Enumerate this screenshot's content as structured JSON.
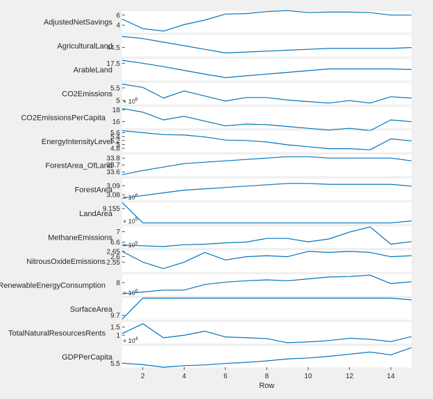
{
  "chart_data": {
    "type": "line",
    "plot_type": "stacked-plot",
    "xlabel": "Row",
    "xlim": [
      1,
      15
    ],
    "xticks": [
      2,
      4,
      6,
      8,
      10,
      12,
      14
    ],
    "x": [
      1,
      2,
      3,
      4,
      5,
      6,
      7,
      8,
      9,
      10,
      11,
      12,
      13,
      14,
      15
    ],
    "line_color": "#0072bd",
    "background": "#ffffff",
    "series": [
      {
        "name": "AdjustedNetSavings",
        "ylim": [
          2.5,
          6.8
        ],
        "yticks": [
          4,
          6
        ],
        "exponent": "",
        "values": [
          5.2,
          3.3,
          2.8,
          4.1,
          5.0,
          6.2,
          6.3,
          6.7,
          6.9,
          6.5,
          6.6,
          6.6,
          6.5,
          6.0,
          6.0
        ]
      },
      {
        "name": "AgriculturalLand",
        "ylim": [
          44.3,
          44.78
        ],
        "yticks": [
          44.5
        ],
        "exponent": "",
        "values": [
          44.75,
          44.7,
          44.62,
          44.54,
          44.46,
          44.38,
          44.4,
          44.42,
          44.44,
          44.46,
          44.48,
          44.48,
          44.48,
          44.48,
          44.5
        ]
      },
      {
        "name": "ArableLand",
        "ylim": [
          16.9,
          17.65
        ],
        "yticks": [
          17.5
        ],
        "exponent": "",
        "values": [
          17.6,
          17.5,
          17.38,
          17.25,
          17.12,
          17.0,
          17.06,
          17.12,
          17.18,
          17.24,
          17.3,
          17.3,
          17.3,
          17.3,
          17.28
        ]
      },
      {
        "name": "CO2Emissions",
        "ylim": [
          4.85,
          5.7
        ],
        "yticks": [
          5,
          5.5
        ],
        "exponent": "6",
        "values": [
          5.65,
          5.52,
          5.1,
          5.38,
          5.18,
          4.98,
          5.12,
          5.12,
          5.02,
          4.96,
          4.9,
          5.0,
          4.9,
          5.15,
          5.1
        ]
      },
      {
        "name": "CO2EmissionsPerCapita",
        "ylim": [
          14.9,
          18.5
        ],
        "yticks": [
          16,
          18
        ],
        "exponent": "",
        "values": [
          18.2,
          17.6,
          16.3,
          16.9,
          16.1,
          15.3,
          15.6,
          15.5,
          15.2,
          14.9,
          14.6,
          14.9,
          14.5,
          16.3,
          16.0
        ]
      },
      {
        "name": "EnergyIntensityLevel",
        "ylim": [
          4.6,
          5.7
        ],
        "yticks": [
          4.8,
          5,
          5.2,
          5.4,
          5.6
        ],
        "exponent": "",
        "values": [
          5.7,
          5.6,
          5.5,
          5.48,
          5.38,
          5.22,
          5.2,
          5.12,
          4.98,
          4.88,
          4.78,
          4.78,
          4.72,
          5.28,
          5.18
        ]
      },
      {
        "name": "ForestArea_OfLand",
        "ylim": [
          33.54,
          33.85
        ],
        "yticks": [
          33.6,
          33.7,
          33.8
        ],
        "exponent": "",
        "values": [
          33.56,
          33.62,
          33.67,
          33.72,
          33.74,
          33.76,
          33.78,
          33.8,
          33.82,
          33.82,
          33.8,
          33.8,
          33.8,
          33.8,
          33.76
        ]
      },
      {
        "name": "ForestArea",
        "ylim": [
          3.074,
          3.098
        ],
        "yticks": [
          3.08,
          3.09
        ],
        "exponent": "6",
        "values": [
          3.076,
          3.079,
          3.082,
          3.085,
          3.0865,
          3.088,
          3.0895,
          3.091,
          3.0925,
          3.0925,
          3.0915,
          3.0915,
          3.0915,
          3.0915,
          3.0895
        ]
      },
      {
        "name": "LandArea",
        "ylim": [
          9.1535,
          9.1556
        ],
        "yticks": [
          9.155
        ],
        "exponent": "5",
        "values": [
          9.1556,
          9.1536,
          9.1536,
          9.1536,
          9.1536,
          9.1536,
          9.1536,
          9.1536,
          9.1536,
          9.1536,
          9.1536,
          9.1536,
          9.1536,
          9.1536,
          9.1538
        ]
      },
      {
        "name": "MethaneEmissions",
        "ylim": [
          6.38,
          7.2
        ],
        "yticks": [
          6.6,
          7
        ],
        "exponent": "5",
        "values": [
          6.48,
          6.46,
          6.43,
          6.5,
          6.52,
          6.57,
          6.6,
          6.74,
          6.74,
          6.61,
          6.72,
          6.98,
          7.18,
          6.52,
          6.62
        ]
      },
      {
        "name": "NitrousOxideEmissions",
        "ylim": [
          2.46,
          2.66
        ],
        "yticks": [
          2.55,
          2.6,
          2.65
        ],
        "exponent": "",
        "values": [
          2.65,
          2.55,
          2.49,
          2.55,
          2.64,
          2.57,
          2.6,
          2.61,
          2.6,
          2.65,
          2.64,
          2.65,
          2.64,
          2.6,
          2.61
        ]
      },
      {
        "name": "RenewableEnergyConsumption",
        "ylim": [
          6.6,
          8.9
        ],
        "yticks": [
          8
        ],
        "exponent": "6",
        "values": [
          6.8,
          7.0,
          7.2,
          7.2,
          7.8,
          8.05,
          8.2,
          8.3,
          8.2,
          8.4,
          8.6,
          8.65,
          8.8,
          7.9,
          8.1
        ]
      },
      {
        "name": "SurfaceArea",
        "ylim": [
          9.5,
          10.5
        ],
        "yticks": [
          9.7
        ],
        "exponent": "",
        "values": [
          9.52,
          10.5,
          10.5,
          10.5,
          10.5,
          10.5,
          10.5,
          10.5,
          10.5,
          10.5,
          10.5,
          10.5,
          10.5,
          10.5,
          10.42
        ]
      },
      {
        "name": "TotalNaturalResourcesRents",
        "ylim": [
          0.5,
          1.8
        ],
        "yticks": [
          1,
          1.5
        ],
        "exponent": "4",
        "values": [
          1.1,
          1.7,
          0.85,
          1.0,
          1.25,
          0.9,
          0.85,
          0.8,
          0.55,
          0.6,
          0.68,
          0.82,
          0.76,
          0.62,
          0.92
        ]
      },
      {
        "name": "GDPPerCapita",
        "ylim": [
          5.2,
          6.7
        ],
        "yticks": [
          5.5
        ],
        "exponent": "",
        "values": [
          5.5,
          5.4,
          5.22,
          5.33,
          5.38,
          5.48,
          5.56,
          5.66,
          5.8,
          5.86,
          5.98,
          6.13,
          6.28,
          6.08,
          6.58
        ]
      }
    ]
  }
}
